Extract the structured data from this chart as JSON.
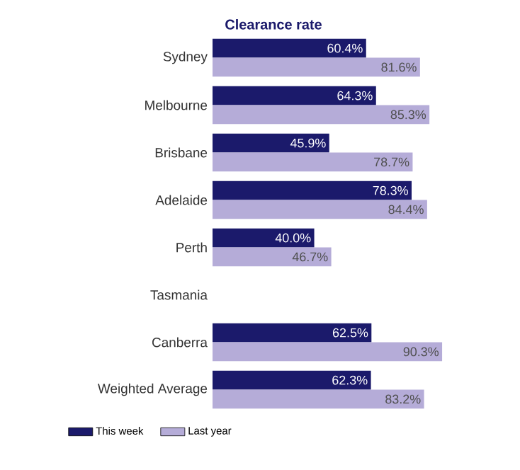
{
  "chart_data": {
    "type": "bar",
    "orientation": "horizontal",
    "title": "Clearance rate",
    "categories": [
      "Sydney",
      "Melbourne",
      "Brisbane",
      "Adelaide",
      "Perth",
      "Tasmania",
      "Canberra",
      "Weighted Average"
    ],
    "series": [
      {
        "name": "This week",
        "color": "#1b1a6b",
        "values": [
          60.4,
          64.3,
          45.9,
          78.3,
          40.0,
          null,
          62.5,
          62.3
        ],
        "value_labels": [
          "60.4%",
          "64.3%",
          "45.9%",
          "78.3%",
          "40.0%",
          null,
          "62.5%",
          "62.3%"
        ]
      },
      {
        "name": "Last year",
        "color": "#b5acd8",
        "values": [
          81.6,
          85.3,
          78.7,
          84.4,
          46.7,
          null,
          90.3,
          83.2
        ],
        "value_labels": [
          "81.6%",
          "85.3%",
          "78.7%",
          "84.4%",
          "46.7%",
          null,
          "90.3%",
          "83.2%"
        ]
      }
    ],
    "legend": "bottom left"
  }
}
